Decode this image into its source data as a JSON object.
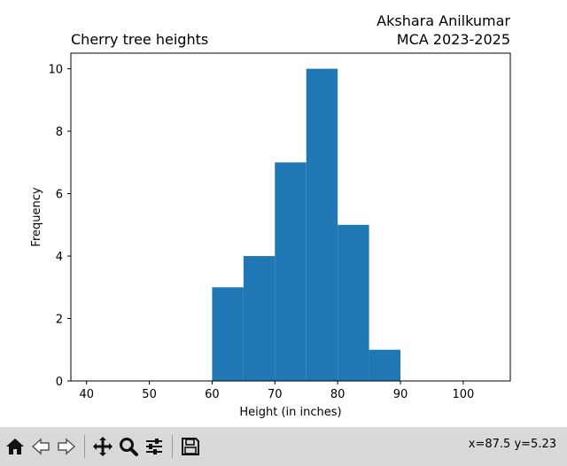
{
  "window": {
    "title_left": "Cherry tree heights",
    "title_right_line1": "Akshara Anilkumar",
    "title_right_line2": "MCA 2023-2025"
  },
  "toolbar": {
    "buttons": [
      {
        "name": "home-icon",
        "icon": "home"
      },
      {
        "name": "back-icon",
        "icon": "arrow-left"
      },
      {
        "name": "forward-icon",
        "icon": "arrow-right"
      },
      {
        "name": "pan-icon",
        "icon": "move"
      },
      {
        "name": "zoom-icon",
        "icon": "magnifier"
      },
      {
        "name": "configure-subplots-icon",
        "icon": "sliders"
      },
      {
        "name": "save-icon",
        "icon": "floppy-disk"
      }
    ],
    "coords": "x=87.5 y=5.23"
  },
  "chart_data": {
    "type": "bar",
    "title": "Cherry tree heights",
    "xlabel": "Height (in inches)",
    "ylabel": "Frequency",
    "bins": [
      [
        60,
        65
      ],
      [
        65,
        70
      ],
      [
        70,
        75
      ],
      [
        75,
        80
      ],
      [
        80,
        85
      ],
      [
        85,
        90
      ]
    ],
    "values": [
      3,
      4,
      7,
      10,
      5,
      1
    ],
    "xlim": [
      37.5,
      107.5
    ],
    "ylim": [
      0,
      10.5
    ],
    "xticks": [
      40,
      50,
      60,
      70,
      80,
      90,
      100
    ],
    "yticks": [
      0,
      2,
      4,
      6,
      8,
      10
    ],
    "bar_color": "#1f77b4",
    "grid": false,
    "legend": "none"
  }
}
